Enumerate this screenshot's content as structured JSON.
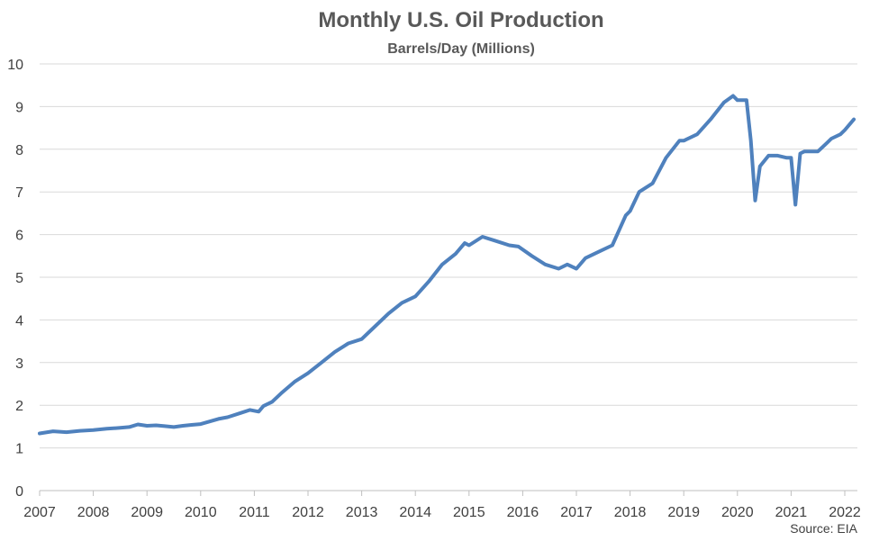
{
  "chart_data": {
    "type": "line",
    "title": "Monthly U.S. Oil Production",
    "subtitle": "Barrels/Day (Millions)",
    "source": "Source: EIA",
    "xlabel": "",
    "ylabel": "",
    "xlim": [
      2007,
      2022.2
    ],
    "ylim": [
      0,
      10
    ],
    "y_ticks": [
      0,
      1,
      2,
      3,
      4,
      5,
      6,
      7,
      8,
      9,
      10
    ],
    "x_ticks": [
      "2007",
      "2008",
      "2009",
      "2010",
      "2011",
      "2012",
      "2013",
      "2014",
      "2015",
      "2016",
      "2017",
      "2018",
      "2019",
      "2020",
      "2021",
      "2022"
    ],
    "grid": true,
    "legend": "none",
    "color": "#4f81bd",
    "series": [
      {
        "x": [
          2007.0,
          2007.25,
          2007.5,
          2007.75,
          2008.0,
          2008.25,
          2008.5,
          2008.67,
          2008.83,
          2009.0,
          2009.17,
          2009.33,
          2009.5,
          2009.67,
          2009.83,
          2010.0,
          2010.17,
          2010.33,
          2010.5,
          2010.75,
          2010.92,
          2011.08,
          2011.17,
          2011.33,
          2011.5,
          2011.75,
          2012.0,
          2012.25,
          2012.5,
          2012.75,
          2013.0,
          2013.25,
          2013.5,
          2013.75,
          2014.0,
          2014.25,
          2014.5,
          2014.75,
          2014.92,
          2015.0,
          2015.25,
          2015.5,
          2015.75,
          2015.92,
          2016.17,
          2016.42,
          2016.67,
          2016.83,
          2017.0,
          2017.17,
          2017.42,
          2017.67,
          2017.92,
          2018.0,
          2018.17,
          2018.42,
          2018.67,
          2018.92,
          2019.0,
          2019.25,
          2019.5,
          2019.75,
          2019.92,
          2020.0,
          2020.17,
          2020.25,
          2020.33,
          2020.42,
          2020.58,
          2020.75,
          2020.92,
          2021.0,
          2021.08,
          2021.17,
          2021.25,
          2021.5,
          2021.67,
          2021.75,
          2021.92,
          2022.0,
          2022.17
        ],
        "values": [
          1.34,
          1.39,
          1.37,
          1.4,
          1.42,
          1.45,
          1.47,
          1.49,
          1.55,
          1.52,
          1.53,
          1.51,
          1.49,
          1.52,
          1.54,
          1.56,
          1.62,
          1.68,
          1.72,
          1.82,
          1.89,
          1.85,
          1.98,
          2.08,
          2.28,
          2.55,
          2.75,
          3.0,
          3.25,
          3.45,
          3.55,
          3.85,
          4.15,
          4.4,
          4.55,
          4.9,
          5.3,
          5.55,
          5.8,
          5.75,
          5.95,
          5.85,
          5.75,
          5.72,
          5.5,
          5.3,
          5.2,
          5.3,
          5.2,
          5.45,
          5.6,
          5.75,
          6.45,
          6.55,
          7.0,
          7.2,
          7.8,
          8.2,
          8.2,
          8.35,
          8.7,
          9.1,
          9.25,
          9.15,
          9.15,
          8.2,
          6.8,
          7.6,
          7.85,
          7.85,
          7.8,
          7.8,
          6.7,
          7.9,
          7.95,
          7.95,
          8.15,
          8.25,
          8.35,
          8.45,
          8.7
        ]
      }
    ]
  }
}
